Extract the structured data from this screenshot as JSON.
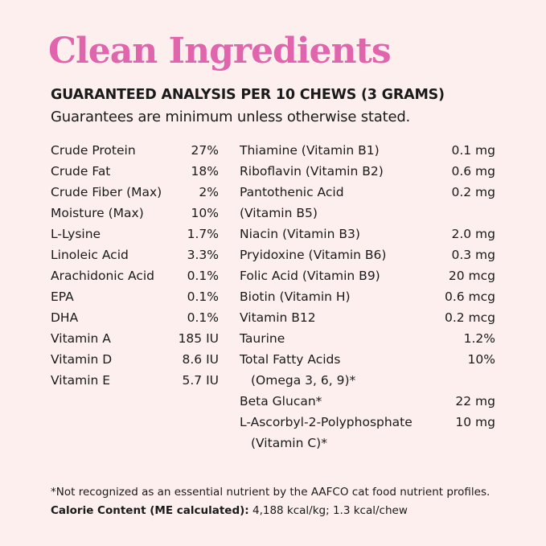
{
  "title": "Clean Ingredients",
  "heading": "GUARANTEED ANALYSIS PER 10 CHEWS (3 GRAMS)",
  "subheading": "Guarantees are minimum unless otherwise stated.",
  "colors": {
    "title": "#e065ad",
    "background": "#fcefee",
    "text": "#1a1a1a"
  },
  "left_column": [
    {
      "label": "Crude Protein",
      "value": "27%"
    },
    {
      "label": "Crude Fat",
      "value": "18%"
    },
    {
      "label": "Crude Fiber (Max)",
      "value": "2%"
    },
    {
      "label": "Moisture (Max)",
      "value": "10%"
    },
    {
      "label": "L-Lysine",
      "value": "1.7%"
    },
    {
      "label": "Linoleic Acid",
      "value": "3.3%"
    },
    {
      "label": "Arachidonic Acid",
      "value": "0.1%"
    },
    {
      "label": "EPA",
      "value": "0.1%"
    },
    {
      "label": "DHA",
      "value": "0.1%"
    },
    {
      "label": "Vitamin A",
      "value": "185 IU"
    },
    {
      "label": "Vitamin D",
      "value": "8.6 IU"
    },
    {
      "label": "Vitamin E",
      "value": "5.7 IU"
    }
  ],
  "right_column": [
    {
      "label": "Thiamine (Vitamin B1)",
      "value": "0.1 mg"
    },
    {
      "label": "Riboflavin (Vitamin B2)",
      "value": "0.6 mg"
    },
    {
      "label": "Pantothenic Acid",
      "value": "0.2 mg",
      "line2": "(Vitamin B5)",
      "indent": false
    },
    {
      "label": "Niacin (Vitamin B3)",
      "value": "2.0 mg"
    },
    {
      "label": "Pryidoxine (Vitamin B6)",
      "value": "0.3 mg"
    },
    {
      "label": "Folic Acid (Vitamin B9)",
      "value": "20 mcg"
    },
    {
      "label": "Biotin (Vitamin H)",
      "value": "0.6 mcg"
    },
    {
      "label": "Vitamin B12",
      "value": "0.2 mcg"
    },
    {
      "label": "Taurine",
      "value": "1.2%"
    },
    {
      "label": "Total Fatty Acids",
      "value": "10%",
      "line2": "(Omega 3, 6, 9)*",
      "indent": true
    },
    {
      "label": "Beta Glucan*",
      "value": "22 mg"
    },
    {
      "label": "L-Ascorbyl-2-Polyphosphate",
      "value": "10 mg",
      "line2": "(Vitamin C)*",
      "indent": true
    }
  ],
  "footnote": "*Not recognized as an essential nutrient by the AAFCO cat food nutrient profiles.",
  "calorie": {
    "label": "Calorie Content (ME calculated):",
    "value": "4,188 kcal/kg; 1.3 kcal/chew"
  }
}
